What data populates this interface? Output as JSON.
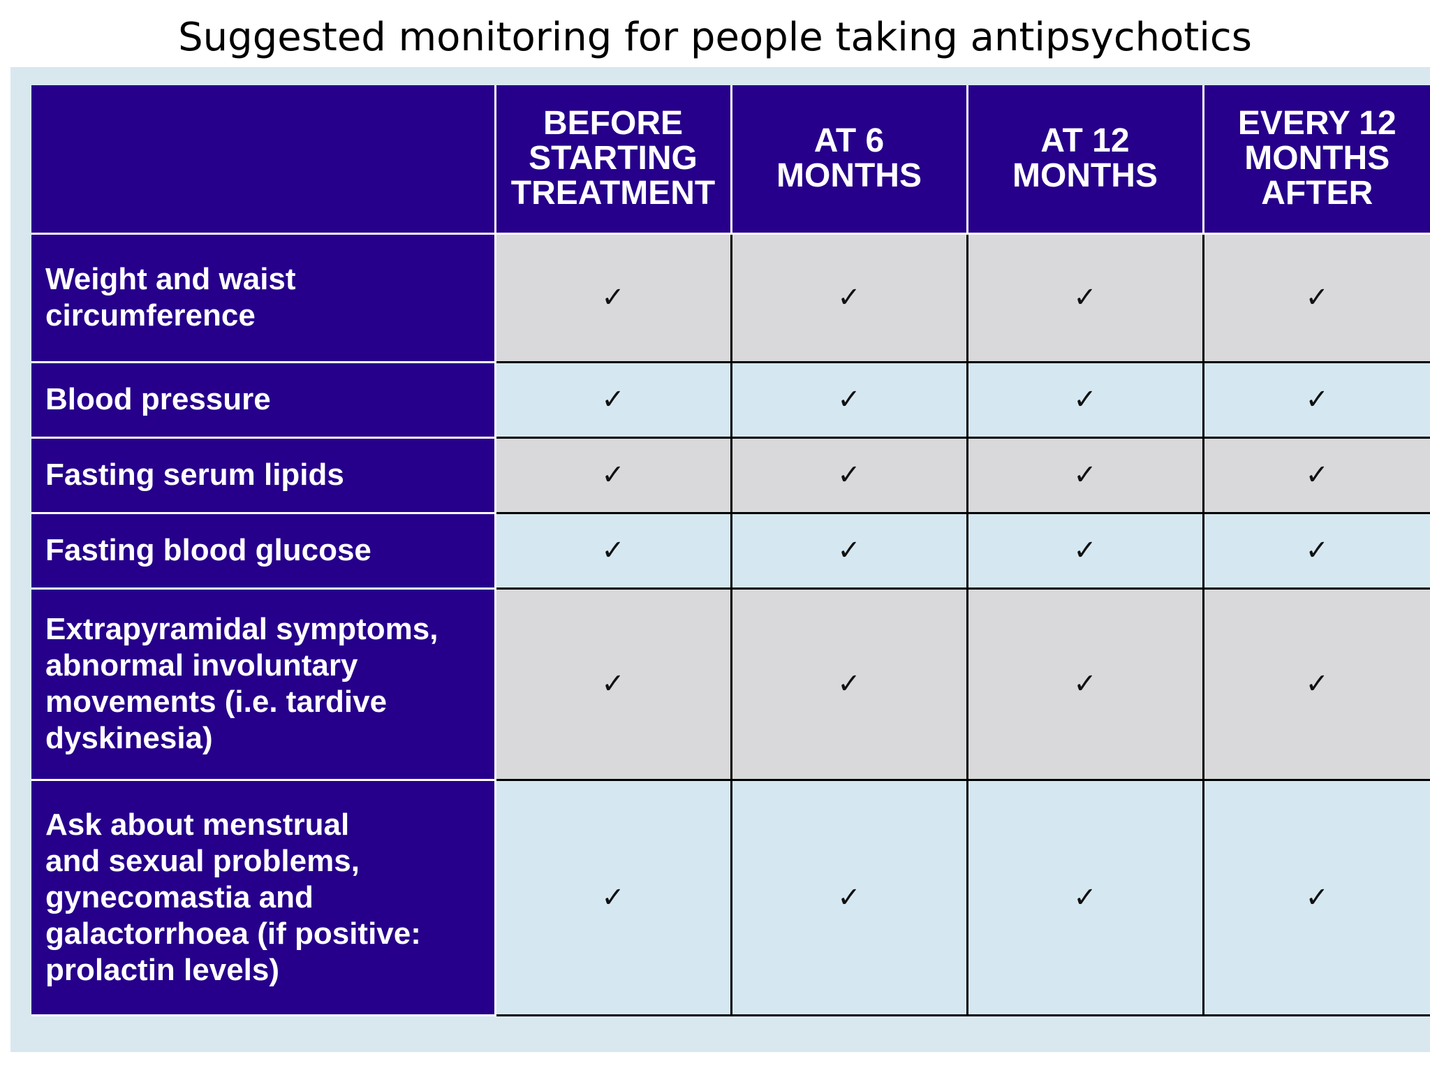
{
  "title": "Suggested monitoring for people taking antipsychotics",
  "table": {
    "columns": [
      "",
      "BEFORE\nSTARTING\nTREATMENT",
      "AT 6\nMONTHS",
      "AT 12\nMONTHS",
      "EVERY 12\nMONTHS\nAFTER"
    ],
    "check_symbol": "✓",
    "rows": [
      {
        "label": "Weight and waist\ncircumference",
        "checks": [
          true,
          true,
          true,
          true
        ]
      },
      {
        "label": "Blood pressure",
        "checks": [
          true,
          true,
          true,
          true
        ]
      },
      {
        "label": "Fasting serum lipids",
        "checks": [
          true,
          true,
          true,
          true
        ]
      },
      {
        "label": "Fasting blood glucose",
        "checks": [
          true,
          true,
          true,
          true
        ]
      },
      {
        "label": "Extrapyramidal symptoms,\nabnormal involuntary\nmovements (i.e. tardive\ndyskinesia)",
        "checks": [
          true,
          true,
          true,
          true
        ]
      },
      {
        "label": "Ask about menstrual\nand sexual problems,\ngynecomastia and\ngalactorrhoea (if positive:\nprolactin levels)",
        "checks": [
          true,
          true,
          true,
          true
        ]
      }
    ]
  },
  "colors": {
    "header_bg": "#26008a",
    "panel_bg": "#d9e8ef",
    "row_grey": "#d9d9dc",
    "row_blue": "#d5e8f2"
  }
}
